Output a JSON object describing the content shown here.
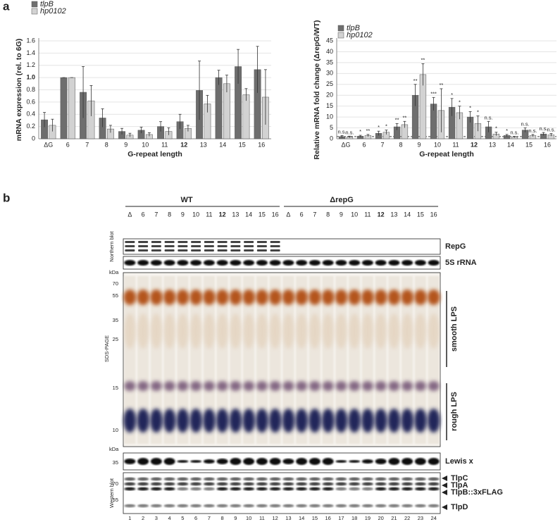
{
  "panels": [
    "a",
    "b"
  ],
  "chart_data": [
    {
      "type": "bar",
      "categories": [
        "ΔG",
        "6",
        "7",
        "8",
        "9",
        "10",
        "11",
        "12",
        "13",
        "14",
        "15",
        "16"
      ],
      "series": [
        {
          "name": "tlpB",
          "color": "#6e6e6e",
          "values": [
            0.31,
            1.0,
            0.76,
            0.34,
            0.12,
            0.14,
            0.2,
            0.28,
            0.79,
            1.0,
            1.18,
            1.13
          ],
          "errors": [
            0.12,
            0,
            0.42,
            0.15,
            0.05,
            0.05,
            0.08,
            0.12,
            0.48,
            0.12,
            0.28,
            0.38
          ]
        },
        {
          "name": "hp0102",
          "color": "#d2d2d2",
          "values": [
            0.22,
            1.0,
            0.62,
            0.16,
            0.06,
            0.07,
            0.12,
            0.17,
            0.57,
            0.9,
            0.72,
            0.68
          ],
          "errors": [
            0.1,
            0,
            0.25,
            0.06,
            0.03,
            0.03,
            0.06,
            0.05,
            0.14,
            0.14,
            0.1,
            0.45
          ]
        }
      ],
      "ylim": [
        0,
        1.6
      ],
      "yticks": [
        0,
        0.2,
        0.4,
        0.6,
        0.8,
        {
          "value": 1,
          "label": "1.0"
        },
        1.2,
        1.4,
        1.6
      ],
      "ylabel": "mRNA expression (rel. to 6G)",
      "xlabel": "G-repeat length",
      "grid": true,
      "legend": "upper left"
    },
    {
      "type": "bar",
      "categories": [
        "ΔG",
        "6",
        "7",
        "8",
        "9",
        "10",
        "11",
        "12",
        "13",
        "14",
        "15",
        "16"
      ],
      "series": [
        {
          "name": "tlpB",
          "color": "#6e6e6e",
          "values": [
            1,
            1.2,
            2.5,
            5.5,
            20,
            16,
            14.5,
            10,
            5.5,
            1.5,
            4,
            2.2
          ],
          "errors": [
            0.5,
            0.4,
            1,
            1.5,
            5,
            3,
            4,
            2.5,
            2.5,
            0.5,
            1,
            0.7
          ],
          "annotations": [
            "n.s.",
            "*",
            "*",
            "**",
            "**",
            "***",
            "*",
            "*",
            "n.s.",
            "*",
            "n.s.",
            "n.s."
          ]
        },
        {
          "name": "hp0102",
          "color": "#d2d2d2",
          "values": [
            0.8,
            1.5,
            3,
            6.5,
            29.5,
            13,
            12,
            7,
            2.2,
            0.8,
            1.5,
            1.8
          ],
          "errors": [
            0.4,
            0.5,
            1,
            1.5,
            5,
            10,
            3,
            3.5,
            0.8,
            0.3,
            0.5,
            0.6
          ],
          "annotations": [
            "n.s.",
            "**",
            "*",
            "**",
            "**",
            "**",
            "*",
            "*",
            "*",
            "n.s.",
            "n.s.",
            "n.s."
          ]
        }
      ],
      "ylim": [
        0,
        45
      ],
      "yticks": [
        0,
        5,
        10,
        15,
        20,
        25,
        30,
        35,
        40,
        45
      ],
      "reference_line": 1,
      "ylabel": "Relative mRNA fold change (ΔrepG/WT)",
      "xlabel": "G-repeat length",
      "grid": true,
      "legend": "upper left"
    }
  ],
  "blot": {
    "groups": [
      "WT",
      "ΔrepG"
    ],
    "lanes": [
      "Δ",
      "6",
      "7",
      "8",
      "9",
      "10",
      "11",
      "12",
      "13",
      "14",
      "15",
      "16",
      "Δ",
      "6",
      "7",
      "8",
      "9",
      "10",
      "11",
      "12",
      "13",
      "14",
      "15",
      "16"
    ],
    "lane_numbers": [
      "1",
      "2",
      "3",
      "4",
      "5",
      "6",
      "7",
      "8",
      "9",
      "10",
      "11",
      "12",
      "13",
      "14",
      "15",
      "16",
      "17",
      "18",
      "19",
      "20",
      "21",
      "22",
      "23",
      "24"
    ],
    "northern_label": "Northern blot",
    "northern_bands": [
      "RepG",
      "5S rRNA"
    ],
    "sds_label": "SDS-PAGE",
    "kda": "kDa",
    "sds_markers": [
      "70",
      "55",
      "35",
      "25",
      "15",
      "10"
    ],
    "lps": [
      "smooth LPS",
      "rough LPS"
    ],
    "lewis_marker": "35",
    "lewis_label": "Lewis x",
    "western_label": "Western blot",
    "western_markers": [
      "70",
      "55"
    ],
    "western_bands": [
      "TlpC",
      "TlpA",
      "TlpB::3xFLAG",
      "TlpD"
    ]
  }
}
